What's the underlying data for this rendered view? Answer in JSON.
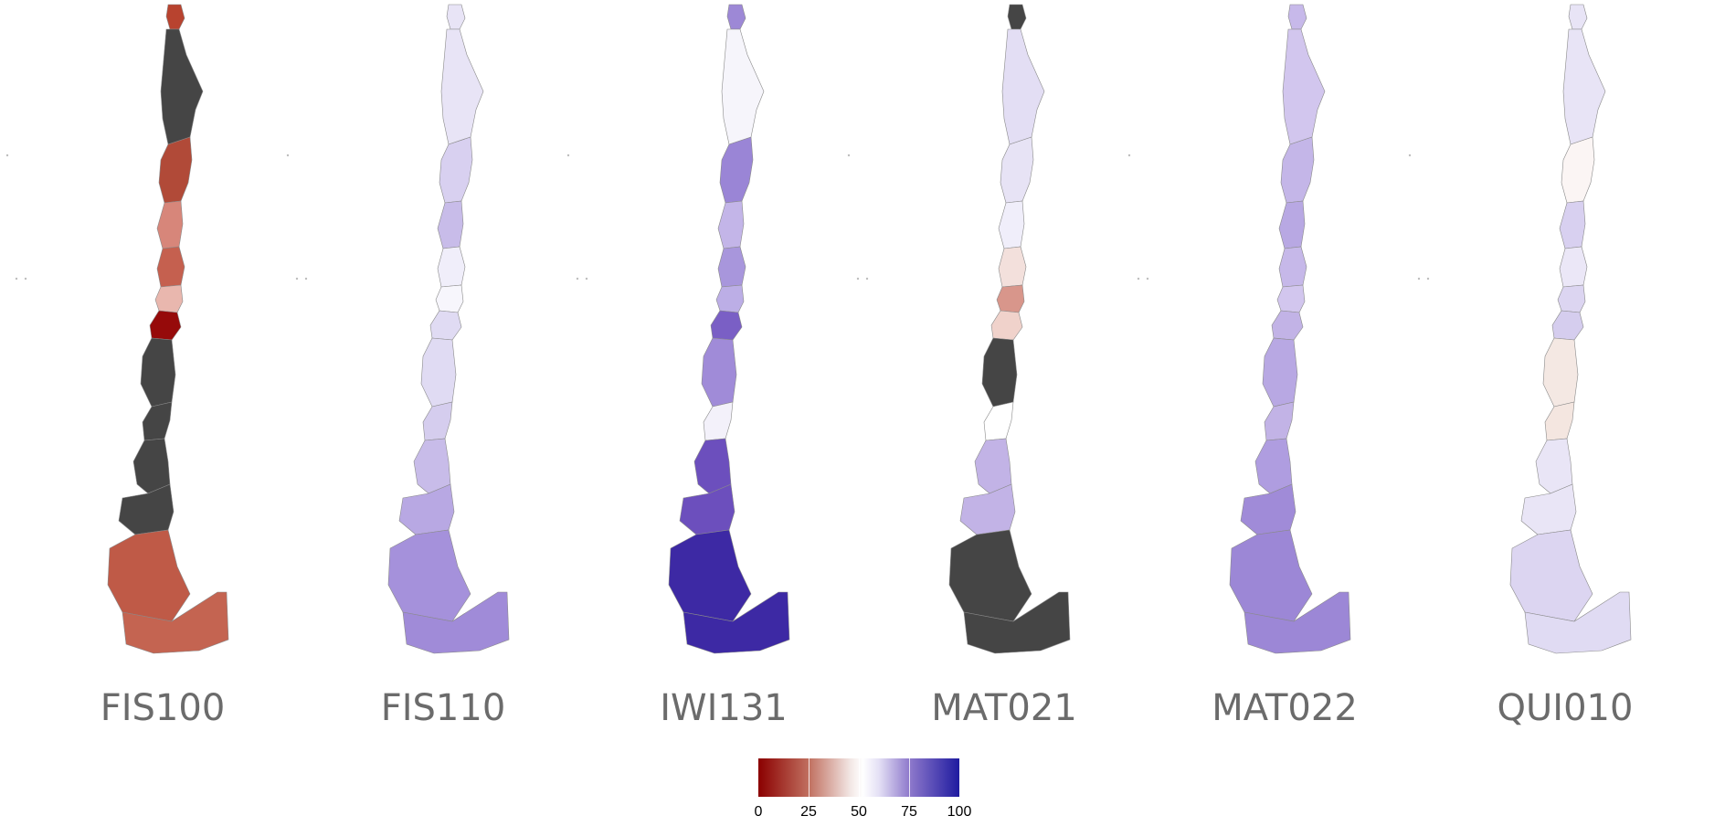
{
  "colors": {
    "background": "#ffffff",
    "missing": "#454545",
    "border": "#8a8a8a",
    "label": "#6b6b6b"
  },
  "legend": {
    "min": 0,
    "max": 100,
    "ticks": [
      "0",
      "25",
      "50",
      "75",
      "100"
    ],
    "palette": [
      "#8b0000",
      "#ffffff",
      "#1f1ba0"
    ]
  },
  "maps": [
    {
      "name": "FIS100",
      "region_colors": [
        "#b8432f",
        "#454545",
        "#b14a38",
        "#d7867a",
        "#c5604f",
        "#e9b7ae",
        "#960a0a",
        "#454545",
        "#454545",
        "#454545",
        "#454545",
        "#bf5a47",
        "#c46451"
      ]
    },
    {
      "name": "FIS110",
      "region_colors": [
        "#e8e4f6",
        "#e8e4f6",
        "#d8d0f0",
        "#c8bce9",
        "#f0eefa",
        "#f7f6fc",
        "#e0dbf3",
        "#e0dbf3",
        "#d5cdee",
        "#c8bce9",
        "#b8a8e3",
        "#a591db",
        "#a08bd8"
      ]
    },
    {
      "name": "IWI131",
      "region_colors": [
        "#9d88d6",
        "#f6f5fb",
        "#9a85d6",
        "#c3b5e8",
        "#a896dc",
        "#bcaee6",
        "#7a5fc5",
        "#a08bd8",
        "#f3f1fa",
        "#6c4fbd",
        "#6c4fbd",
        "#3d29a4",
        "#3d29a4"
      ]
    },
    {
      "name": "MAT021",
      "region_colors": [
        "#454545",
        "#e3def4",
        "#e7e3f5",
        "#f0eefa",
        "#f3e0dc",
        "#d8968b",
        "#f0d2cb",
        "#454545",
        "#ffffff",
        "#c2b3e6",
        "#c2b3e6",
        "#454545",
        "#454545"
      ]
    },
    {
      "name": "MAT022",
      "region_colors": [
        "#c7b9ea",
        "#d2c6ee",
        "#c4b6e8",
        "#b8a8e3",
        "#c6b8e9",
        "#d2c6ee",
        "#c2b3e6",
        "#b8a8e3",
        "#c2b3e6",
        "#af9de0",
        "#a08bd8",
        "#9c87d6",
        "#9c87d6"
      ]
    },
    {
      "name": "QUI010",
      "region_colors": [
        "#e8e4f6",
        "#e8e4f6",
        "#fbf5f4",
        "#d8d0f0",
        "#ebe7f7",
        "#dcd5f1",
        "#d5cdee",
        "#f4e8e3",
        "#f4e6e0",
        "#e9e5f6",
        "#e9e5f6",
        "#dcd5f1",
        "#e0dbf3"
      ]
    }
  ]
}
